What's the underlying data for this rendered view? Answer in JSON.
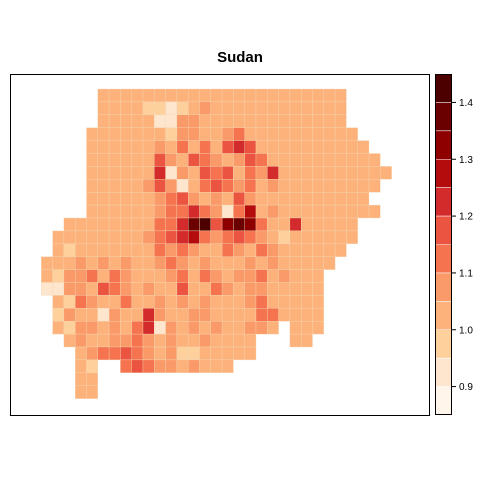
{
  "title": "Sudan",
  "legend": {
    "breaks": [
      0.85,
      0.9,
      0.95,
      1.0,
      1.05,
      1.1,
      1.15,
      1.2,
      1.25,
      1.3,
      1.35,
      1.4,
      1.45
    ],
    "colors": [
      "#FFF5EB",
      "#FEE6CE",
      "#FDD09C",
      "#FDB27C",
      "#FB9A69",
      "#F5734E",
      "#EB5440",
      "#D32B2B",
      "#B40C0C",
      "#8E0000",
      "#6A0000",
      "#4D0000"
    ],
    "tick_labels": [
      "0.9",
      "1.0",
      "1.1",
      "1.2",
      "1.3",
      "1.4"
    ],
    "tick_values": [
      0.9,
      1.0,
      1.1,
      1.2,
      1.3,
      1.4
    ]
  },
  "map": {
    "rows": [
      "......KKKKKKKKKKKKKKKKKKKKKK......",
      "......KKKKKKKKKKKKKKKKKKKKKK......",
      "......KKKKKKKKKKKKKKKKKKKKKK......",
      ".....KKKKKKKKKKKKKKKKKKKKKKKK.....",
      ".....KKKKKKKKKKKKKKKKKKKKKKKKK....",
      ".....KKKKKKKKKKKKKKKKKKKKKKKKKK...",
      ".....KKKKKKKKKKKKKKKKKKKKKKKKKKK..",
      ".....KKKKKKKKKKKKKKKKKKKKKKKKKK...",
      ".....KKKKKKKKKKKKKKKKKKKKKKKKK....",
      ".....KKKKKKKKKKKKKKKKKKKKKKKKKK...",
      "...KKKKKKKKKKKKKKKKKKKKKKKKKK.....",
      "..KKKKKKKKKKKKKKKKKKKKKKKKKKK.....",
      "..KKKKKKKKKKKKKKKKKKKKKKKKKK......",
      ".KKKKKKKKKKKKKKKKKKKKKKKKKK.......",
      ".KKKKKKKKKKKKKKKKKKKKKKKKK........",
      ".KKKKKKKKKKKKKKKKKKKKKKKKK........",
      "..KKKKKKKKKKKKKKKKKKKKKKKK........",
      "..KKKKKKKKKKKKKKKKKKKKKKKK........",
      "..KKKKKKKKKKKKKKKKKKKK.KKK........",
      "...KKKKKKKKKKKKKKKKK...KK.........",
      "....KKKKKKKKKKKKKKKK..............",
      "....KK..KKKKKKKKKK................",
      "....KK............................",
      "....KK............................"
    ],
    "cells": [
      [
        1,
        10,
        0.97
      ],
      [
        1,
        11,
        0.95
      ],
      [
        1,
        12,
        0.92
      ],
      [
        1,
        13,
        0.98
      ],
      [
        1,
        14,
        1.04
      ],
      [
        1,
        15,
        1.06
      ],
      [
        2,
        11,
        0.93
      ],
      [
        2,
        12,
        0.9
      ],
      [
        2,
        13,
        1.06
      ],
      [
        2,
        14,
        1.08
      ],
      [
        2,
        15,
        1.04
      ],
      [
        3,
        12,
        0.95
      ],
      [
        3,
        13,
        1.06
      ],
      [
        3,
        14,
        1.08
      ],
      [
        3,
        16,
        1.04
      ],
      [
        3,
        17,
        1.08
      ],
      [
        3,
        18,
        1.12
      ],
      [
        4,
        11,
        1.08
      ],
      [
        4,
        13,
        1.1
      ],
      [
        4,
        15,
        1.14
      ],
      [
        4,
        17,
        1.16
      ],
      [
        4,
        18,
        1.22
      ],
      [
        4,
        19,
        1.16
      ],
      [
        5,
        11,
        1.18
      ],
      [
        5,
        12,
        1.07
      ],
      [
        5,
        14,
        1.16
      ],
      [
        5,
        15,
        1.1
      ],
      [
        5,
        16,
        1.06
      ],
      [
        5,
        18,
        1.06
      ],
      [
        5,
        19,
        1.16
      ],
      [
        5,
        20,
        1.12
      ],
      [
        6,
        11,
        1.2
      ],
      [
        6,
        12,
        0.93
      ],
      [
        6,
        13,
        1.06
      ],
      [
        6,
        14,
        1.04
      ],
      [
        6,
        15,
        1.16
      ],
      [
        6,
        16,
        1.1
      ],
      [
        6,
        17,
        1.18
      ],
      [
        6,
        19,
        1.14
      ],
      [
        6,
        20,
        1.06
      ],
      [
        6,
        21,
        1.2
      ],
      [
        6,
        22,
        1.04
      ],
      [
        7,
        10,
        1.06
      ],
      [
        7,
        11,
        1.16
      ],
      [
        7,
        12,
        1.08
      ],
      [
        7,
        13,
        0.93
      ],
      [
        7,
        14,
        1.04
      ],
      [
        7,
        15,
        1.12
      ],
      [
        7,
        16,
        1.16
      ],
      [
        7,
        17,
        1.1
      ],
      [
        7,
        18,
        1.06
      ],
      [
        7,
        19,
        1.1
      ],
      [
        7,
        21,
        1.06
      ],
      [
        7,
        22,
        1.04
      ],
      [
        8,
        11,
        1.06
      ],
      [
        8,
        12,
        1.12
      ],
      [
        8,
        13,
        1.18
      ],
      [
        8,
        14,
        1.06
      ],
      [
        8,
        16,
        1.08
      ],
      [
        8,
        17,
        1.04
      ],
      [
        8,
        18,
        1.16
      ],
      [
        8,
        19,
        1.08
      ],
      [
        8,
        20,
        1.04
      ],
      [
        9,
        11,
        1.08
      ],
      [
        9,
        12,
        1.1
      ],
      [
        9,
        13,
        1.14
      ],
      [
        9,
        14,
        1.22
      ],
      [
        9,
        15,
        1.12
      ],
      [
        9,
        16,
        1.06
      ],
      [
        9,
        17,
        0.93
      ],
      [
        9,
        18,
        1.14
      ],
      [
        9,
        19,
        1.26
      ],
      [
        9,
        20,
        1.04
      ],
      [
        9,
        21,
        1.06
      ],
      [
        10,
        11,
        1.1
      ],
      [
        10,
        12,
        1.12
      ],
      [
        10,
        13,
        1.2
      ],
      [
        10,
        14,
        1.36
      ],
      [
        10,
        15,
        1.42
      ],
      [
        10,
        16,
        1.16
      ],
      [
        10,
        17,
        1.3
      ],
      [
        10,
        18,
        1.36
      ],
      [
        10,
        19,
        1.3
      ],
      [
        10,
        20,
        1.12
      ],
      [
        10,
        22,
        1.04
      ],
      [
        10,
        23,
        1.24
      ],
      [
        11,
        10,
        1.06
      ],
      [
        11,
        11,
        1.12
      ],
      [
        11,
        12,
        1.16
      ],
      [
        11,
        13,
        1.22
      ],
      [
        11,
        14,
        1.28
      ],
      [
        11,
        15,
        1.1
      ],
      [
        11,
        16,
        1.06
      ],
      [
        11,
        17,
        1.12
      ],
      [
        11,
        18,
        1.18
      ],
      [
        11,
        19,
        1.14
      ],
      [
        11,
        20,
        1.08
      ],
      [
        11,
        21,
        1.04
      ],
      [
        11,
        22,
        0.96
      ],
      [
        12,
        3,
        0.98
      ],
      [
        12,
        10,
        1.04
      ],
      [
        12,
        11,
        1.1
      ],
      [
        12,
        12,
        1.06
      ],
      [
        12,
        13,
        1.12
      ],
      [
        12,
        14,
        1.08
      ],
      [
        12,
        16,
        1.04
      ],
      [
        12,
        17,
        1.14
      ],
      [
        12,
        18,
        1.06
      ],
      [
        12,
        20,
        1.1
      ],
      [
        12,
        21,
        1.06
      ],
      [
        12,
        22,
        1.04
      ],
      [
        13,
        3,
        1.04
      ],
      [
        13,
        4,
        1.06
      ],
      [
        13,
        5,
        1.04
      ],
      [
        13,
        6,
        1.08
      ],
      [
        13,
        8,
        1.06
      ],
      [
        13,
        11,
        1.06
      ],
      [
        13,
        12,
        1.1
      ],
      [
        13,
        13,
        1.06
      ],
      [
        13,
        15,
        1.08
      ],
      [
        13,
        19,
        1.06
      ],
      [
        13,
        20,
        1.04
      ],
      [
        13,
        21,
        1.06
      ],
      [
        13,
        22,
        1.04
      ],
      [
        14,
        1,
        1.04
      ],
      [
        14,
        2,
        0.96
      ],
      [
        14,
        3,
        1.08
      ],
      [
        14,
        4,
        1.06
      ],
      [
        14,
        5,
        1.1
      ],
      [
        14,
        6,
        1.04
      ],
      [
        14,
        7,
        1.14
      ],
      [
        14,
        8,
        1.06
      ],
      [
        14,
        9,
        1.04
      ],
      [
        14,
        12,
        1.08
      ],
      [
        14,
        13,
        1.1
      ],
      [
        14,
        15,
        1.1
      ],
      [
        14,
        16,
        1.06
      ],
      [
        14,
        18,
        1.06
      ],
      [
        14,
        19,
        1.08
      ],
      [
        14,
        20,
        1.1
      ],
      [
        14,
        21,
        1.04
      ],
      [
        14,
        22,
        1.06
      ],
      [
        14,
        23,
        1.04
      ],
      [
        15,
        1,
        0.94
      ],
      [
        15,
        2,
        0.92
      ],
      [
        15,
        3,
        1.06
      ],
      [
        15,
        4,
        1.08
      ],
      [
        15,
        5,
        1.04
      ],
      [
        15,
        6,
        1.16
      ],
      [
        15,
        7,
        1.1
      ],
      [
        15,
        8,
        1.06
      ],
      [
        15,
        10,
        1.06
      ],
      [
        15,
        11,
        1.04
      ],
      [
        15,
        13,
        1.16
      ],
      [
        15,
        14,
        1.04
      ],
      [
        15,
        16,
        1.12
      ],
      [
        15,
        17,
        1.06
      ],
      [
        15,
        18,
        1.04
      ],
      [
        15,
        19,
        1.06
      ],
      [
        15,
        20,
        1.08
      ],
      [
        15,
        22,
        1.04
      ],
      [
        16,
        2,
        1.04
      ],
      [
        16,
        3,
        0.96
      ],
      [
        16,
        4,
        1.1
      ],
      [
        16,
        5,
        1.06
      ],
      [
        16,
        7,
        1.04
      ],
      [
        16,
        8,
        1.1
      ],
      [
        16,
        11,
        1.08
      ],
      [
        16,
        12,
        1.04
      ],
      [
        16,
        13,
        1.06
      ],
      [
        16,
        15,
        1.08
      ],
      [
        16,
        16,
        1.04
      ],
      [
        16,
        17,
        1.04
      ],
      [
        16,
        19,
        1.06
      ],
      [
        16,
        20,
        1.1
      ],
      [
        17,
        2,
        0.96
      ],
      [
        17,
        3,
        1.06
      ],
      [
        17,
        4,
        1.04
      ],
      [
        17,
        6,
        0.94
      ],
      [
        17,
        7,
        1.08
      ],
      [
        17,
        8,
        1.04
      ],
      [
        17,
        10,
        1.22
      ],
      [
        17,
        11,
        1.06
      ],
      [
        17,
        12,
        1.04
      ],
      [
        17,
        14,
        1.08
      ],
      [
        17,
        15,
        1.06
      ],
      [
        17,
        17,
        1.04
      ],
      [
        17,
        20,
        1.14
      ],
      [
        17,
        21,
        1.1
      ],
      [
        18,
        2,
        1.04
      ],
      [
        18,
        3,
        0.96
      ],
      [
        18,
        4,
        1.06
      ],
      [
        18,
        5,
        1.08
      ],
      [
        18,
        7,
        1.06
      ],
      [
        18,
        8,
        1.04
      ],
      [
        18,
        9,
        1.1
      ],
      [
        18,
        10,
        1.24
      ],
      [
        18,
        11,
        0.93
      ],
      [
        18,
        12,
        1.06
      ],
      [
        18,
        13,
        1.04
      ],
      [
        18,
        14,
        1.08
      ],
      [
        18,
        15,
        1.04
      ],
      [
        18,
        16,
        1.06
      ],
      [
        18,
        17,
        1.04
      ],
      [
        18,
        19,
        1.06
      ],
      [
        18,
        20,
        1.08
      ],
      [
        19,
        4,
        1.06
      ],
      [
        19,
        5,
        1.04
      ],
      [
        19,
        7,
        1.08
      ],
      [
        19,
        8,
        1.06
      ],
      [
        19,
        9,
        1.1
      ],
      [
        19,
        10,
        1.06
      ],
      [
        19,
        11,
        1.04
      ],
      [
        19,
        12,
        1.06
      ],
      [
        19,
        14,
        1.04
      ],
      [
        19,
        15,
        1.06
      ],
      [
        20,
        4,
        1.04
      ],
      [
        20,
        5,
        1.08
      ],
      [
        20,
        6,
        1.14
      ],
      [
        20,
        7,
        1.12
      ],
      [
        20,
        8,
        1.16
      ],
      [
        20,
        9,
        1.1
      ],
      [
        20,
        10,
        1.06
      ],
      [
        20,
        11,
        1.04
      ],
      [
        20,
        12,
        1.06
      ],
      [
        20,
        13,
        0.98
      ],
      [
        20,
        14,
        0.96
      ],
      [
        21,
        4,
        1.04
      ],
      [
        21,
        5,
        0.96
      ],
      [
        21,
        8,
        1.12
      ],
      [
        21,
        9,
        1.16
      ],
      [
        21,
        10,
        1.1
      ],
      [
        21,
        11,
        1.06
      ],
      [
        21,
        12,
        1.08
      ],
      [
        21,
        13,
        1.04
      ],
      [
        21,
        14,
        1.06
      ]
    ]
  }
}
